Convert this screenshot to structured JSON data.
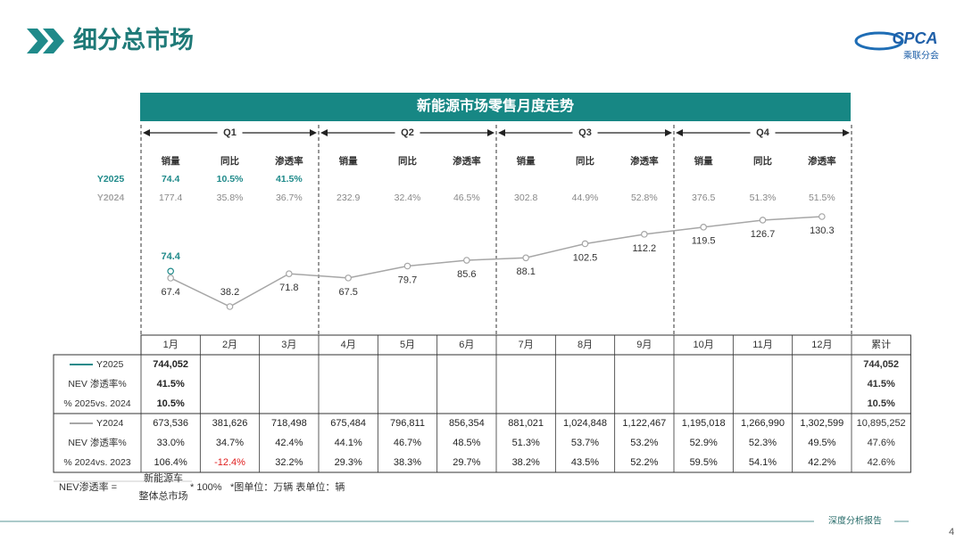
{
  "header": {
    "title": "细分总市场",
    "logo": "CPCA",
    "logo_sub": "乘联分会"
  },
  "chart_data": {
    "type": "line",
    "title": "新能源市场零售月度走势",
    "categories": [
      "1月",
      "2月",
      "3月",
      "4月",
      "5月",
      "6月",
      "7月",
      "8月",
      "9月",
      "10月",
      "11月",
      "12月"
    ],
    "series": [
      {
        "name": "Y2025",
        "color": "#1f8a8a",
        "values": [
          74.4,
          null,
          null,
          null,
          null,
          null,
          null,
          null,
          null,
          null,
          null,
          null
        ]
      },
      {
        "name": "Y2024",
        "color": "#a6a6a6",
        "values": [
          67.4,
          38.2,
          71.8,
          67.5,
          79.7,
          85.6,
          88.1,
          102.5,
          112.2,
          119.5,
          126.7,
          130.3
        ]
      }
    ]
  },
  "quarters": {
    "row_labels": [
      "Y2025",
      "Y2024"
    ],
    "items": [
      {
        "name": "Q1",
        "columns": [
          "销量",
          "同比",
          "渗透率"
        ],
        "y2025": [
          "74.4",
          "10.5%",
          "41.5%"
        ],
        "y2024": [
          "177.4",
          "35.8%",
          "36.7%"
        ]
      },
      {
        "name": "Q2",
        "columns": [
          "销量",
          "同比",
          "渗透率"
        ],
        "y2024": [
          "232.9",
          "32.4%",
          "46.5%"
        ]
      },
      {
        "name": "Q3",
        "columns": [
          "销量",
          "同比",
          "渗透率"
        ],
        "y2024": [
          "302.8",
          "44.9%",
          "52.8%"
        ]
      },
      {
        "name": "Q4",
        "columns": [
          "销量",
          "同比",
          "渗透率"
        ],
        "y2024": [
          "376.5",
          "51.3%",
          "51.5%"
        ]
      }
    ]
  },
  "table": {
    "total_label": "累计",
    "groups": [
      {
        "bold": true,
        "rows": [
          {
            "label": "Y2025",
            "color": "#1f8a8a",
            "cells": [
              "744,052",
              null,
              null,
              null,
              null,
              null,
              null,
              null,
              null,
              null,
              null,
              null
            ],
            "total": "744,052"
          },
          {
            "label": "NEV 渗透率%",
            "cells": [
              "41.5%",
              null,
              null,
              null,
              null,
              null,
              null,
              null,
              null,
              null,
              null,
              null
            ],
            "total": "41.5%"
          },
          {
            "label": "% 2025vs. 2024",
            "cells": [
              "10.5%",
              null,
              null,
              null,
              null,
              null,
              null,
              null,
              null,
              null,
              null,
              null
            ],
            "total": "10.5%"
          }
        ]
      },
      {
        "bold": false,
        "rows": [
          {
            "label": "Y2024",
            "color": "#a6a6a6",
            "cells": [
              "673,536",
              "381,626",
              "718,498",
              "675,484",
              "796,811",
              "856,354",
              "881,021",
              "1,024,848",
              "1,122,467",
              "1,195,018",
              "1,266,990",
              "1,302,599"
            ],
            "total": "10,895,252"
          },
          {
            "label": "NEV 渗透率%",
            "cells": [
              "33.0%",
              "34.7%",
              "42.4%",
              "44.1%",
              "46.7%",
              "48.5%",
              "51.3%",
              "53.7%",
              "53.2%",
              "52.9%",
              "52.3%",
              "49.5%"
            ],
            "total": "47.6%"
          },
          {
            "label": "% 2024vs. 2023",
            "cells": [
              "106.4%",
              "-12.4%",
              "32.2%",
              "29.3%",
              "38.3%",
              "29.7%",
              "38.2%",
              "43.5%",
              "52.2%",
              "59.5%",
              "54.1%",
              "42.2%"
            ],
            "total": "42.6%"
          }
        ]
      }
    ]
  },
  "footer": {
    "formula_left": "NEV渗透率 =",
    "numerator": "新能源车",
    "denominator": "整体总市场",
    "formula_right": "* 100%",
    "units": "*图单位：万辆   表单位：辆",
    "report": "深度分析报告",
    "page": "4"
  }
}
